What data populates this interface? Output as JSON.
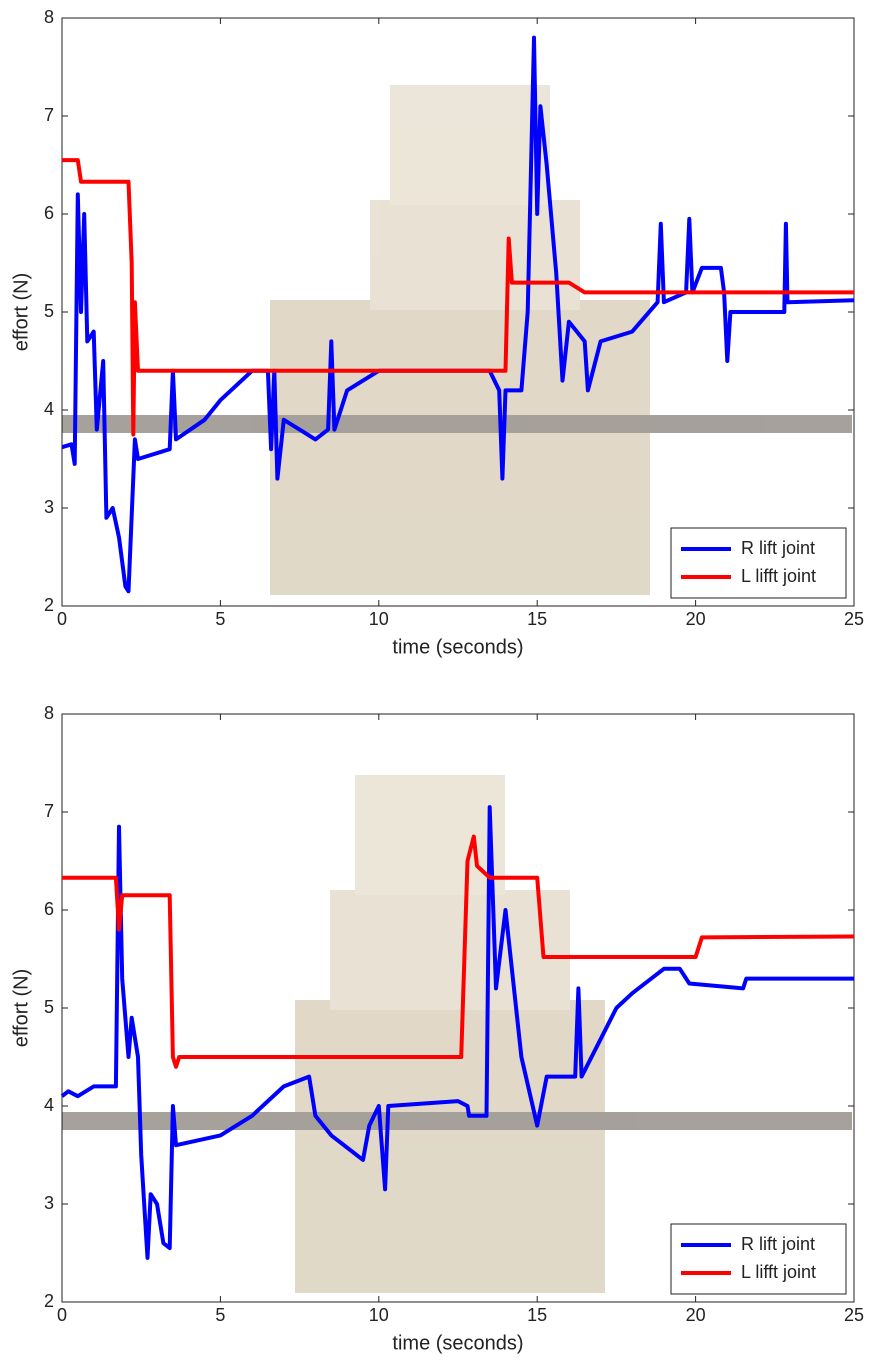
{
  "chart_data": [
    {
      "type": "line",
      "xlabel": "time (seconds)",
      "ylabel": "effort (N)",
      "xlim": [
        0,
        25
      ],
      "ylim": [
        2,
        8
      ],
      "xticks": [
        0,
        5,
        10,
        15,
        20,
        25
      ],
      "yticks": [
        2,
        3,
        4,
        5,
        6,
        7,
        8
      ],
      "legend": "lower right",
      "series": [
        {
          "name": "R lift joint",
          "color": "#0000ff",
          "x": [
            0,
            0.3,
            0.4,
            0.5,
            0.6,
            0.7,
            0.8,
            1.0,
            1.1,
            1.3,
            1.4,
            1.6,
            1.8,
            2.0,
            2.1,
            2.3,
            2.4,
            3.4,
            3.5,
            3.6,
            4.5,
            5.0,
            6.0,
            6.5,
            6.6,
            6.7,
            6.8,
            7.0,
            7.5,
            8.0,
            8.4,
            8.5,
            8.6,
            9,
            10,
            11,
            12,
            13.5,
            13.8,
            13.9,
            14.0,
            14.5,
            14.7,
            14.9,
            15.0,
            15.1,
            15.3,
            15.6,
            15.8,
            16,
            16.5,
            16.6,
            17,
            18,
            18.8,
            18.9,
            19.0,
            19.7,
            19.8,
            19.9,
            20.2,
            20.8,
            20.9,
            21.0,
            21.1,
            22.8,
            22.85,
            22.9,
            25
          ],
          "values": [
            3.62,
            3.65,
            3.45,
            6.2,
            5.0,
            6.0,
            4.7,
            4.8,
            3.8,
            4.5,
            2.9,
            3.0,
            2.7,
            2.2,
            2.15,
            3.7,
            3.5,
            3.6,
            4.4,
            3.7,
            3.9,
            4.1,
            4.4,
            4.4,
            3.6,
            4.4,
            3.3,
            3.9,
            3.8,
            3.7,
            3.8,
            4.7,
            3.8,
            4.2,
            4.4,
            4.4,
            4.4,
            4.4,
            4.2,
            3.3,
            4.2,
            4.2,
            5.0,
            7.8,
            6.0,
            7.1,
            6.5,
            5.4,
            4.3,
            4.9,
            4.7,
            4.2,
            4.7,
            4.8,
            5.1,
            5.9,
            5.1,
            5.2,
            5.95,
            5.2,
            5.45,
            5.45,
            5.2,
            4.5,
            5.0,
            5.0,
            5.9,
            5.1,
            5.12
          ]
        },
        {
          "name": "L lifft joint",
          "color": "#ff0000",
          "x": [
            0,
            0.5,
            0.6,
            2.1,
            2.2,
            2.25,
            2.3,
            2.4,
            14.0,
            14.1,
            14.2,
            16.0,
            16.5,
            25
          ],
          "values": [
            6.55,
            6.55,
            6.33,
            6.33,
            5.5,
            3.75,
            5.1,
            4.4,
            4.4,
            5.75,
            5.3,
            5.3,
            5.2,
            5.2
          ]
        }
      ]
    },
    {
      "type": "line",
      "xlabel": "time (seconds)",
      "ylabel": "effort (N)",
      "xlim": [
        0,
        25
      ],
      "ylim": [
        2,
        8
      ],
      "xticks": [
        0,
        5,
        10,
        15,
        20,
        25
      ],
      "yticks": [
        2,
        3,
        4,
        5,
        6,
        7,
        8
      ],
      "legend": "lower right",
      "series": [
        {
          "name": "R lift joint",
          "color": "#0000ff",
          "x": [
            0,
            0.2,
            0.5,
            1.0,
            1.7,
            1.8,
            1.9,
            2.1,
            2.2,
            2.4,
            2.5,
            2.7,
            2.8,
            3.0,
            3.2,
            3.4,
            3.5,
            3.6,
            5,
            6,
            7,
            7.8,
            8.0,
            8.5,
            9.5,
            9.7,
            10.0,
            10.2,
            10.3,
            12.5,
            12.8,
            12.85,
            13.4,
            13.5,
            13.7,
            14,
            14.5,
            15.0,
            15.3,
            16.2,
            16.3,
            16.4,
            17.5,
            18,
            19,
            19.5,
            19.8,
            21.5,
            21.6,
            25
          ],
          "values": [
            4.1,
            4.15,
            4.1,
            4.2,
            4.2,
            6.85,
            5.3,
            4.5,
            4.9,
            4.5,
            3.5,
            2.45,
            3.1,
            3.0,
            2.6,
            2.55,
            4.0,
            3.6,
            3.7,
            3.9,
            4.2,
            4.3,
            3.9,
            3.7,
            3.45,
            3.8,
            4.0,
            3.15,
            4.0,
            4.05,
            4.0,
            3.9,
            3.9,
            7.05,
            5.2,
            6.0,
            4.5,
            3.8,
            4.3,
            4.3,
            5.2,
            4.3,
            5.0,
            5.15,
            5.4,
            5.4,
            5.25,
            5.2,
            5.3,
            5.3
          ]
        },
        {
          "name": "L lifft joint",
          "color": "#ff0000",
          "x": [
            0,
            1.7,
            1.8,
            1.9,
            3.4,
            3.5,
            3.6,
            3.7,
            12.6,
            12.8,
            13.0,
            13.1,
            13.5,
            15.0,
            15.2,
            20.0,
            20.2,
            25
          ],
          "values": [
            6.33,
            6.33,
            5.8,
            6.15,
            6.15,
            4.5,
            4.4,
            4.5,
            4.5,
            6.5,
            6.75,
            6.45,
            6.33,
            6.33,
            5.52,
            5.52,
            5.72,
            5.73
          ]
        }
      ]
    }
  ]
}
